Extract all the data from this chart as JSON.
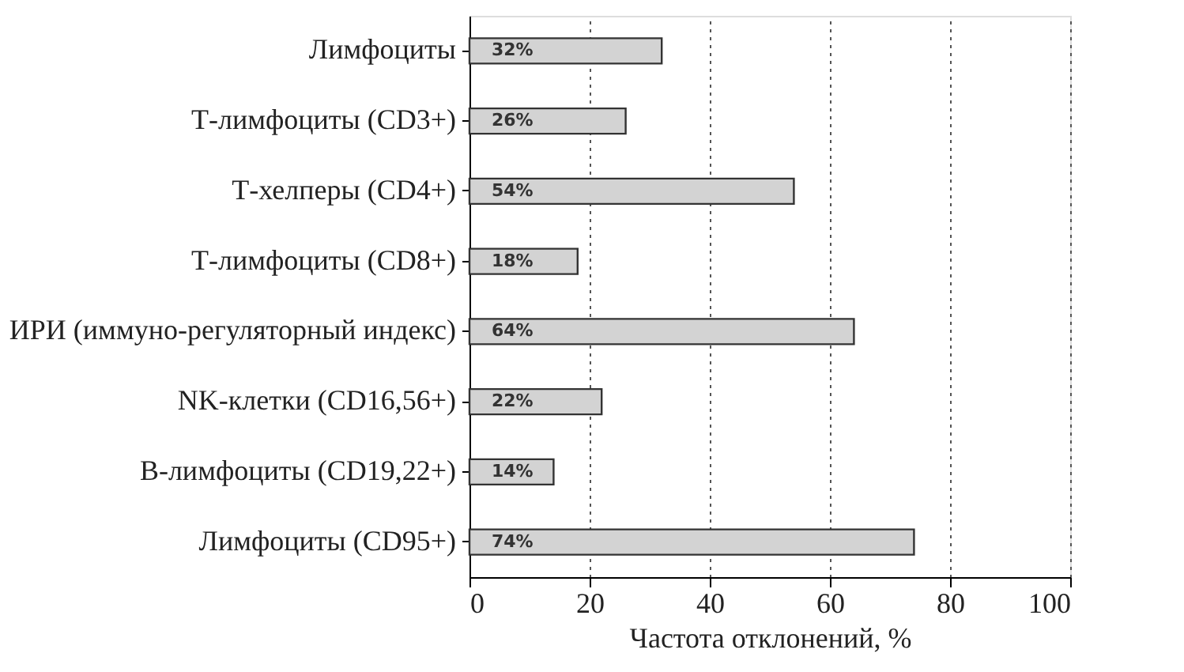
{
  "chart_data": {
    "type": "bar",
    "orientation": "horizontal",
    "xlabel": "Частота отклонений, %",
    "categories": [
      "Лимфоциты",
      "Т-лимфоциты (CD3+)",
      "Т-хелперы (CD4+)",
      "Т-лимфоциты (CD8+)",
      "ИРИ (иммуно-регуляторный индекс)",
      "NK-клетки (CD16,56+)",
      "В-лимфоциты (CD19,22+)",
      "Лимфоциты (CD95+)"
    ],
    "values": [
      32,
      26,
      54,
      18,
      64,
      22,
      14,
      74
    ],
    "value_labels": [
      "32%",
      "26%",
      "54%",
      "18%",
      "64%",
      "22%",
      "14%",
      "74%"
    ],
    "color": "#d3d3d3",
    "xlim": [
      0,
      100
    ],
    "xticks": [
      0,
      20,
      40,
      60,
      80,
      100
    ],
    "grid": "x"
  }
}
